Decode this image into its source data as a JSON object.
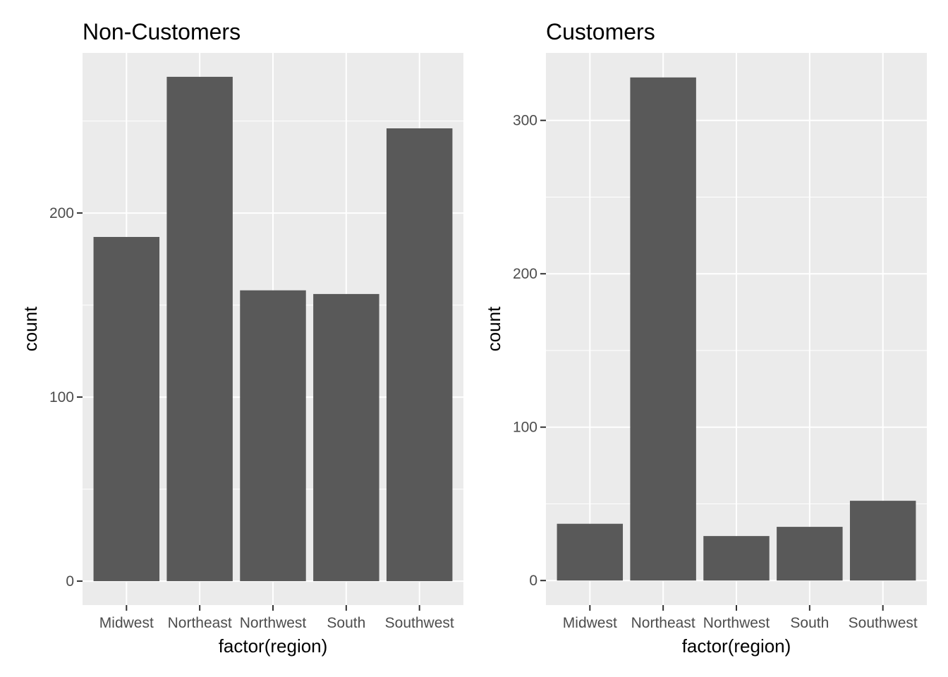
{
  "chart_data": [
    {
      "type": "bar",
      "title": "Non-Customers",
      "xlabel": "factor(region)",
      "ylabel": "count",
      "categories": [
        "Midwest",
        "Northeast",
        "Northwest",
        "South",
        "Southwest"
      ],
      "values": [
        187,
        274,
        158,
        156,
        246
      ],
      "ylim": [
        -13,
        287
      ],
      "yticks": [
        0,
        100,
        200
      ],
      "yticks_minor": [
        50,
        150,
        250
      ],
      "grid": true,
      "colors": {
        "panel": "#ebebeb",
        "grid": "#ffffff",
        "bar": "#595959"
      }
    },
    {
      "type": "bar",
      "title": "Customers",
      "xlabel": "factor(region)",
      "ylabel": "count",
      "categories": [
        "Midwest",
        "Northeast",
        "Northwest",
        "South",
        "Southwest"
      ],
      "values": [
        37,
        328,
        29,
        35,
        52
      ],
      "ylim": [
        -16,
        344
      ],
      "yticks": [
        0,
        100,
        200,
        300
      ],
      "yticks_minor": [
        50,
        150,
        250
      ],
      "grid": true,
      "colors": {
        "panel": "#ebebeb",
        "grid": "#ffffff",
        "bar": "#595959"
      }
    }
  ]
}
